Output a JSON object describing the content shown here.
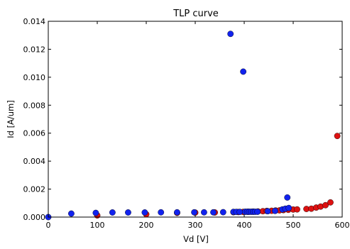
{
  "chart_data": {
    "type": "scatter",
    "title": "TLP curve",
    "xlabel": "Vd [V]",
    "ylabel": "Id [A/um]",
    "xlim": [
      0,
      600
    ],
    "ylim": [
      0,
      0.014
    ],
    "x_ticks": [
      0,
      100,
      200,
      300,
      400,
      500,
      600
    ],
    "x_tick_labels": [
      "0",
      "100",
      "200",
      "300",
      "400",
      "500",
      "600"
    ],
    "y_ticks": [
      0,
      0.002,
      0.004,
      0.006,
      0.008,
      0.01,
      0.012,
      0.014
    ],
    "y_tick_labels": [
      "0.000",
      "0.002",
      "0.004",
      "0.006",
      "0.008",
      "0.010",
      "0.012",
      "0.014"
    ],
    "grid": false,
    "legend": false,
    "series": [
      {
        "color": "#dd1111",
        "points": [
          [
            100,
            0.00012
          ],
          [
            200,
            0.0002
          ],
          [
            263,
            0.0003
          ],
          [
            300,
            0.00032
          ],
          [
            340,
            0.00033
          ],
          [
            378,
            0.00035
          ],
          [
            388,
            0.00036
          ],
          [
            398,
            0.00037
          ],
          [
            408,
            0.00038
          ],
          [
            418,
            0.00039
          ],
          [
            428,
            0.0004
          ],
          [
            438,
            0.00042
          ],
          [
            446,
            0.00044
          ],
          [
            456,
            0.00045
          ],
          [
            464,
            0.00047
          ],
          [
            472,
            0.00048
          ],
          [
            480,
            0.0005
          ],
          [
            490,
            0.00052
          ],
          [
            500,
            0.00054
          ],
          [
            508,
            0.00055
          ],
          [
            527,
            0.00058
          ],
          [
            537,
            0.0006
          ],
          [
            547,
            0.00068
          ],
          [
            556,
            0.00075
          ],
          [
            566,
            0.00085
          ],
          [
            576,
            0.00105
          ],
          [
            590,
            0.0058
          ]
        ]
      },
      {
        "color": "#1122ee",
        "points": [
          [
            0,
            0.0
          ],
          [
            47,
            0.00025
          ],
          [
            97,
            0.0003
          ],
          [
            131,
            0.00033
          ],
          [
            163,
            0.00033
          ],
          [
            197,
            0.00033
          ],
          [
            230,
            0.00034
          ],
          [
            263,
            0.00034
          ],
          [
            298,
            0.00034
          ],
          [
            318,
            0.00034
          ],
          [
            337,
            0.00034
          ],
          [
            357,
            0.00035
          ],
          [
            372,
            0.0131
          ],
          [
            378,
            0.00037
          ],
          [
            384,
            0.00037
          ],
          [
            391,
            0.00037
          ],
          [
            398,
            0.0104
          ],
          [
            402,
            0.00038
          ],
          [
            406,
            0.00038
          ],
          [
            410,
            0.00038
          ],
          [
            414,
            0.00038
          ],
          [
            418,
            0.00038
          ],
          [
            422,
            0.00038
          ],
          [
            427,
            0.00038
          ],
          [
            448,
            0.00042
          ],
          [
            463,
            0.00044
          ],
          [
            478,
            0.00055
          ],
          [
            484,
            0.0006
          ],
          [
            488,
            0.0014
          ],
          [
            491,
            0.00065
          ]
        ]
      }
    ]
  }
}
